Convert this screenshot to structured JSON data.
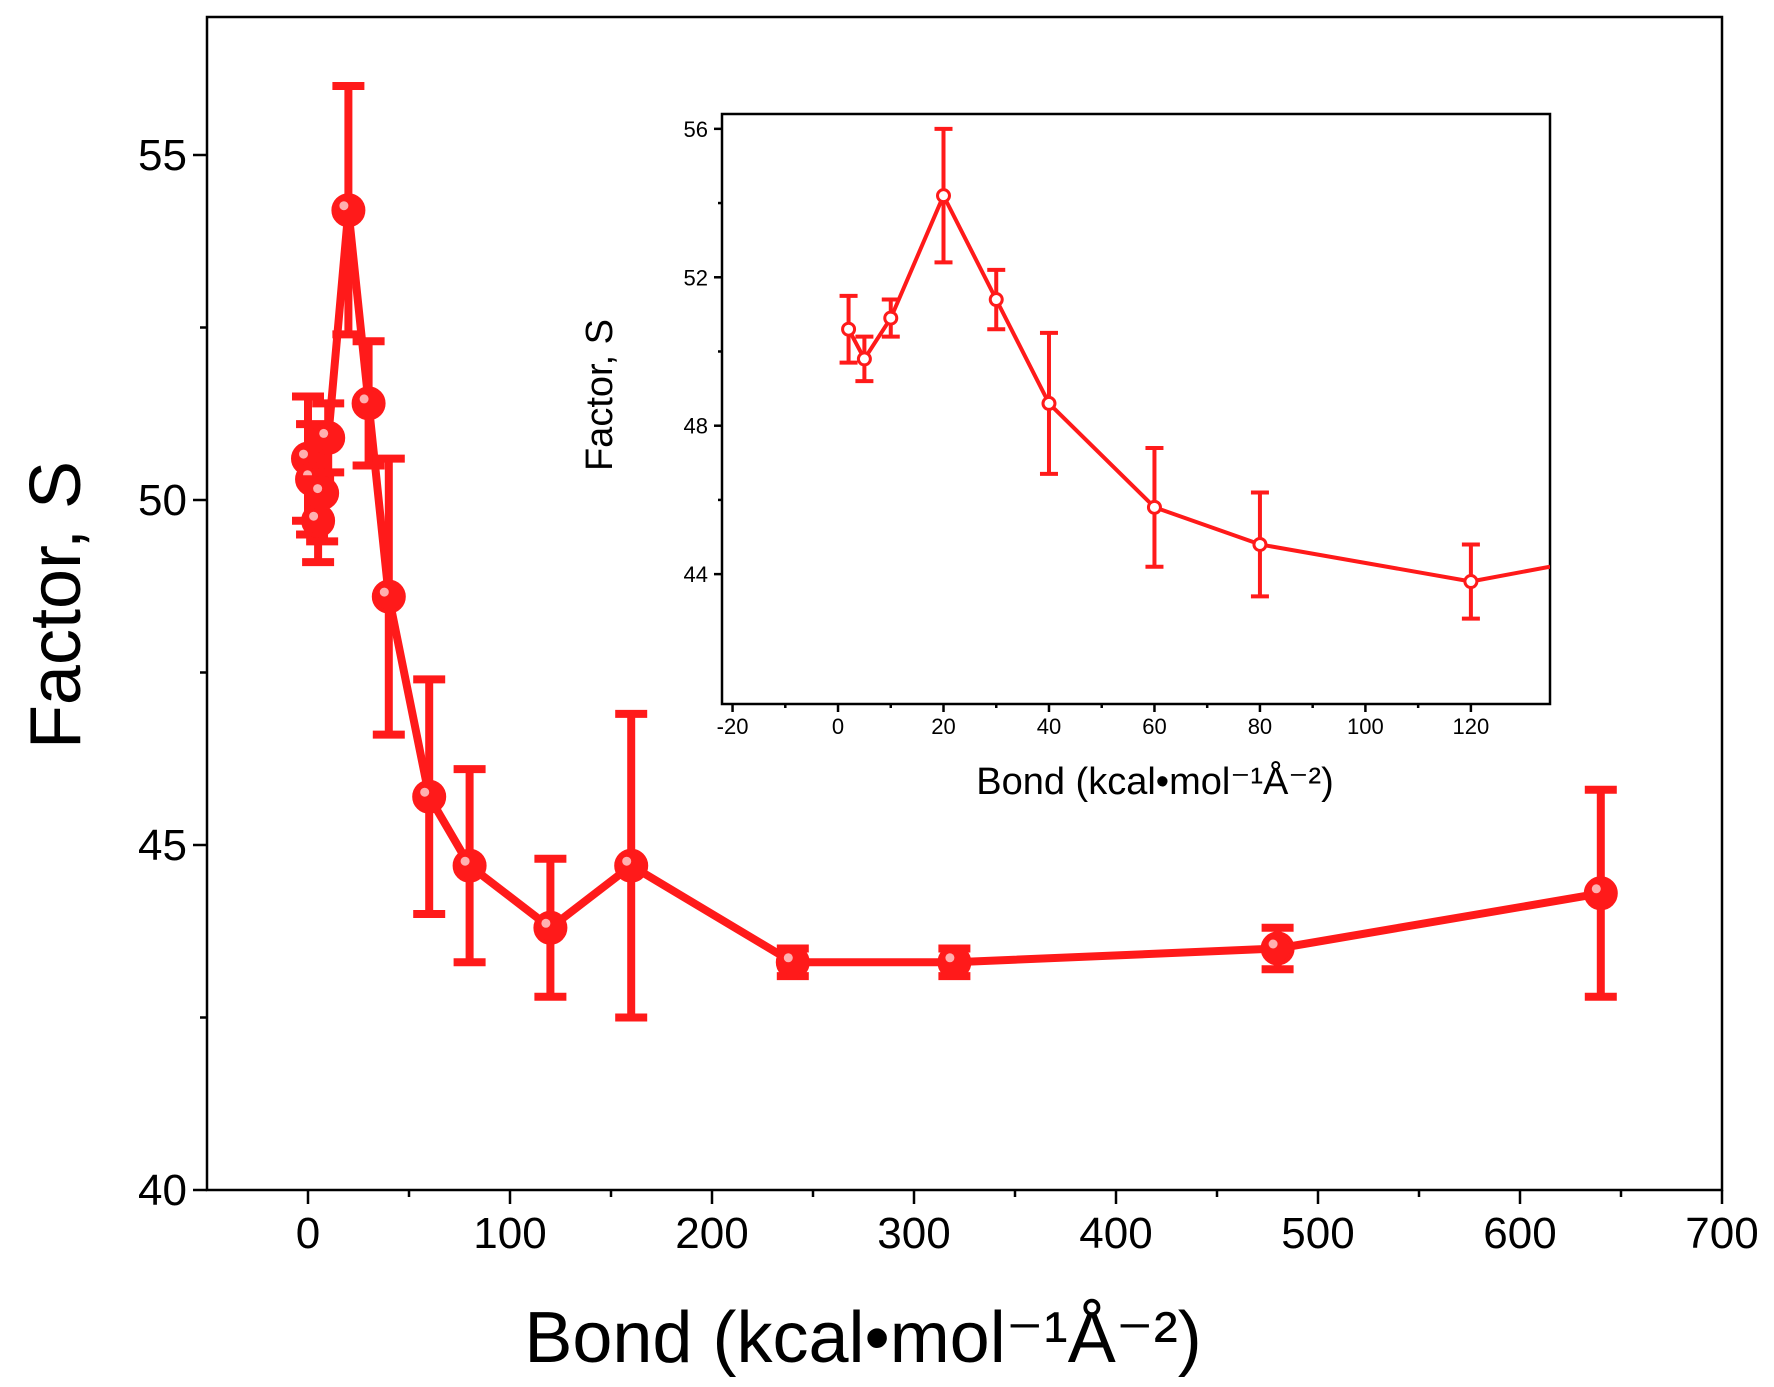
{
  "colors": {
    "series": "#ff1a1a",
    "axis": "#000000",
    "background": "#ffffff"
  },
  "chart_data": [
    {
      "id": "main",
      "type": "line",
      "xlabel": "Bond (kcal•mol⁻¹Å⁻²)",
      "ylabel": "Factor, S",
      "xlim": [
        -50,
        700
      ],
      "ylim": [
        40,
        57
      ],
      "xticks": [
        0,
        100,
        200,
        300,
        400,
        500,
        600,
        700
      ],
      "xtick_labels": [
        "0",
        "100",
        "200",
        "300",
        "400",
        "500",
        "600",
        "700"
      ],
      "yticks": [
        40,
        45,
        50,
        55
      ],
      "ytick_labels": [
        "40",
        "45",
        "50",
        "55"
      ],
      "series": [
        {
          "name": "Factor S",
          "x": [
            0,
            2,
            5,
            7,
            10,
            20,
            30,
            40,
            60,
            80,
            120,
            160,
            240,
            320,
            480,
            640
          ],
          "y": [
            50.6,
            50.3,
            49.7,
            50.1,
            50.9,
            54.2,
            51.4,
            48.6,
            45.7,
            44.7,
            43.8,
            44.7,
            43.3,
            43.3,
            43.5,
            44.3
          ],
          "error": [
            0.9,
            0.8,
            0.6,
            0.7,
            0.5,
            1.8,
            0.9,
            2.0,
            1.7,
            1.4,
            1.0,
            2.2,
            0.2,
            0.2,
            0.3,
            1.5
          ]
        }
      ]
    },
    {
      "id": "inset",
      "type": "line",
      "xlabel": "Bond (kcal•mol⁻¹Å⁻²)",
      "ylabel": "Factor, S",
      "xlim": [
        -22,
        135
      ],
      "ylim": [
        40.5,
        56.4
      ],
      "xticks": [
        -20,
        0,
        20,
        40,
        60,
        80,
        100,
        120
      ],
      "xtick_labels": [
        "-20",
        "0",
        "20",
        "40",
        "60",
        "80",
        "100",
        "120"
      ],
      "yticks": [
        44,
        48,
        52,
        56
      ],
      "ytick_labels": [
        "44",
        "48",
        "52",
        "56"
      ],
      "series": [
        {
          "name": "Factor S",
          "x": [
            2,
            5,
            10,
            20,
            30,
            40,
            60,
            80,
            120,
            135
          ],
          "y": [
            50.6,
            49.8,
            50.9,
            54.2,
            51.4,
            48.6,
            45.8,
            44.8,
            43.8,
            44.2
          ],
          "error": [
            0.9,
            0.6,
            0.5,
            1.8,
            0.8,
            1.9,
            1.6,
            1.4,
            1.0,
            0
          ],
          "clipped_last_point": true
        }
      ]
    }
  ]
}
